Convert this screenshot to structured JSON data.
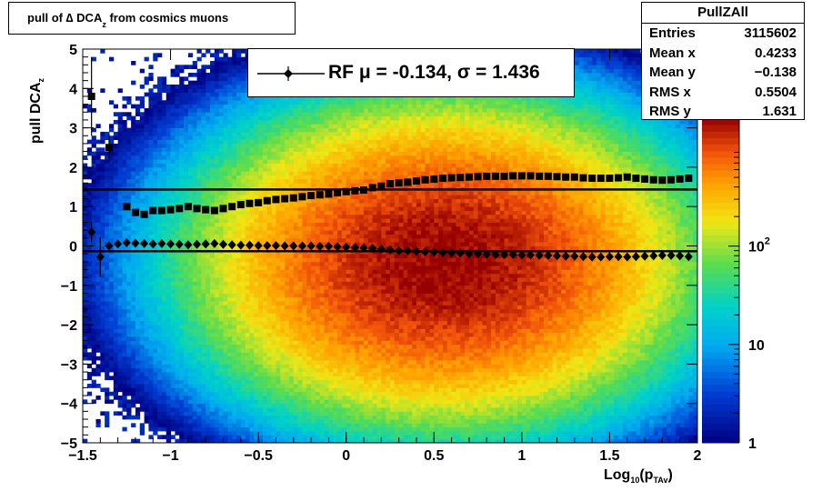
{
  "title": {
    "prefix": "pull of ∆ DCA",
    "sub": "z",
    "suffix": " from cosmics muons"
  },
  "stats": {
    "name": "PullZAll",
    "rows": [
      {
        "label": "Entries",
        "value": "3115602"
      },
      {
        "label": "Mean x",
        "value": "0.4233"
      },
      {
        "label": "Mean y",
        "value": "−0.138"
      },
      {
        "label": "RMS x",
        "value": "0.5504"
      },
      {
        "label": "RMS y",
        "value": "1.631"
      }
    ]
  },
  "legend": {
    "text": "RF μ = -0.134, σ =   1.436"
  },
  "xaxis": {
    "prefix": "Log",
    "sub1": "10",
    "mid": "(p",
    "sub2": "TAv",
    "suffix": ")"
  },
  "yaxis": {
    "prefix": "pull DCA",
    "sub": "z"
  },
  "colors": {
    "markers": "#000000",
    "frame": "#000000"
  },
  "chart_data": {
    "type": "heatmap",
    "title": "pull of ∆ DCAz from cosmics muons",
    "xlabel": "Log10(pTAv)",
    "ylabel": "pull DCAz",
    "xlim": [
      -1.5,
      2
    ],
    "ylim": [
      -5,
      5
    ],
    "x_ticks": [
      "−1.5",
      "−1",
      "−0.5",
      "0",
      "0.5",
      "1",
      "1.5",
      "2"
    ],
    "y_ticks": [
      "−5",
      "−4",
      "−3",
      "−2",
      "−1",
      "0",
      "1",
      "2",
      "3",
      "4",
      "5"
    ],
    "z_scale": "log",
    "z_ticks": [
      {
        "label": "1",
        "value": 1
      },
      {
        "label": "10",
        "value": 10
      },
      {
        "label": "10",
        "sup": "2",
        "value": 100
      }
    ],
    "z_max_approx": 2000,
    "density": {
      "center_x": 0.55,
      "center_y": -0.4,
      "sigma_x": 0.55,
      "sigma_y": 1.6,
      "peak_count": 2000
    },
    "reference_lines": [
      {
        "name": "sigma",
        "y": 1.436
      },
      {
        "name": "mu",
        "y": -0.134
      }
    ],
    "series": [
      {
        "name": "sigma",
        "marker": "square",
        "x": [
          -1.45,
          -1.35,
          -1.25,
          -1.2,
          -1.15,
          -1.1,
          -1.05,
          -1.0,
          -0.95,
          -0.9,
          -0.85,
          -0.8,
          -0.75,
          -0.7,
          -0.65,
          -0.6,
          -0.55,
          -0.5,
          -0.45,
          -0.4,
          -0.35,
          -0.3,
          -0.25,
          -0.2,
          -0.15,
          -0.1,
          -0.05,
          0.0,
          0.05,
          0.1,
          0.15,
          0.2,
          0.25,
          0.3,
          0.35,
          0.4,
          0.45,
          0.5,
          0.55,
          0.6,
          0.65,
          0.7,
          0.75,
          0.8,
          0.85,
          0.9,
          0.95,
          1.0,
          1.05,
          1.1,
          1.15,
          1.2,
          1.25,
          1.3,
          1.35,
          1.4,
          1.45,
          1.5,
          1.55,
          1.6,
          1.65,
          1.7,
          1.75,
          1.8,
          1.85,
          1.9,
          1.95
        ],
        "y": [
          3.8,
          2.5,
          1.0,
          0.85,
          0.8,
          0.9,
          0.9,
          0.92,
          0.95,
          1.0,
          0.95,
          0.92,
          0.9,
          0.95,
          1.0,
          1.05,
          1.08,
          1.1,
          1.15,
          1.18,
          1.2,
          1.22,
          1.25,
          1.28,
          1.3,
          1.32,
          1.35,
          1.38,
          1.4,
          1.42,
          1.48,
          1.52,
          1.58,
          1.6,
          1.62,
          1.65,
          1.68,
          1.7,
          1.72,
          1.73,
          1.74,
          1.75,
          1.76,
          1.77,
          1.77,
          1.77,
          1.78,
          1.78,
          1.78,
          1.77,
          1.77,
          1.76,
          1.75,
          1.75,
          1.73,
          1.72,
          1.72,
          1.72,
          1.73,
          1.75,
          1.72,
          1.7,
          1.68,
          1.67,
          1.68,
          1.7,
          1.72
        ]
      },
      {
        "name": "mu",
        "marker": "diamond",
        "x": [
          -1.45,
          -1.4,
          -1.35,
          -1.3,
          -1.25,
          -1.2,
          -1.15,
          -1.1,
          -1.05,
          -1.0,
          -0.95,
          -0.9,
          -0.85,
          -0.8,
          -0.75,
          -0.7,
          -0.65,
          -0.6,
          -0.55,
          -0.5,
          -0.45,
          -0.4,
          -0.35,
          -0.3,
          -0.25,
          -0.2,
          -0.15,
          -0.1,
          -0.05,
          0.0,
          0.05,
          0.1,
          0.15,
          0.2,
          0.25,
          0.3,
          0.35,
          0.4,
          0.45,
          0.5,
          0.55,
          0.6,
          0.65,
          0.7,
          0.75,
          0.8,
          0.85,
          0.9,
          0.95,
          1.0,
          1.05,
          1.1,
          1.15,
          1.2,
          1.25,
          1.3,
          1.35,
          1.4,
          1.45,
          1.5,
          1.55,
          1.6,
          1.65,
          1.7,
          1.75,
          1.8,
          1.85,
          1.9,
          1.95
        ],
        "y": [
          0.35,
          -0.28,
          0.0,
          0.05,
          0.08,
          0.07,
          0.06,
          0.05,
          0.06,
          0.05,
          0.04,
          0.03,
          0.04,
          0.05,
          0.06,
          0.04,
          0.03,
          0.02,
          0.02,
          0.01,
          0.01,
          0.01,
          0.0,
          0.0,
          0.0,
          0.0,
          -0.01,
          -0.01,
          -0.02,
          -0.03,
          -0.04,
          -0.05,
          -0.06,
          -0.08,
          -0.1,
          -0.12,
          -0.12,
          -0.14,
          -0.15,
          -0.16,
          -0.17,
          -0.18,
          -0.18,
          -0.2,
          -0.2,
          -0.21,
          -0.22,
          -0.22,
          -0.22,
          -0.23,
          -0.23,
          -0.24,
          -0.24,
          -0.25,
          -0.26,
          -0.26,
          -0.27,
          -0.28,
          -0.28,
          -0.27,
          -0.27,
          -0.28,
          -0.27,
          -0.26,
          -0.25,
          -0.24,
          -0.24,
          -0.25,
          -0.27
        ]
      }
    ]
  }
}
